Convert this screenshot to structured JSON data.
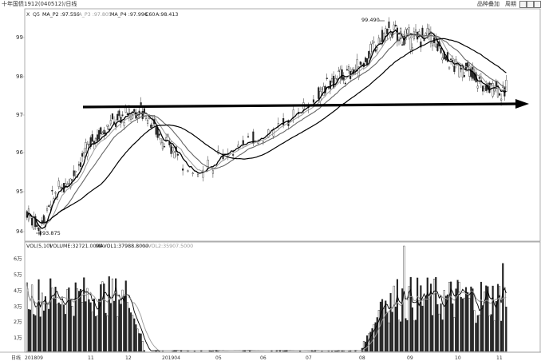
{
  "window": {
    "title": "十年国债1912(040512)/日线",
    "buttons": {
      "overlay": "品种叠加",
      "period": "周期"
    },
    "control_icons": [
      "left-arrow-icon",
      "right-arrow-icon",
      "window-icon",
      "close-icon"
    ]
  },
  "price_panel": {
    "legend": {
      "prefix": "X",
      "period_tag": "Q5",
      "ma2": "MA_P2 :97.555",
      "ma3": "MA_P3 :97.805",
      "ma4": "MA_P4 :97.996",
      "c60": "C60",
      "a": "A:98.413"
    },
    "y_ticks": [
      "94",
      "95",
      "96",
      "97",
      "98",
      "99"
    ],
    "annotations": {
      "high": "99.490",
      "low": "93.875"
    }
  },
  "volume_panel": {
    "legend": {
      "vol": "VOL(5,10)",
      "volume": "VOLUME:32721.0000",
      "mavol1": "MAVOL1:37988.8000",
      "mavol2": "MAVOL2:35907.5000"
    },
    "y_ticks": [
      "1万",
      "2万",
      "3万",
      "4万",
      "5万",
      "6万"
    ]
  },
  "x_axis": {
    "left_label": "日线",
    "ticks": [
      "201809",
      "11",
      "12",
      "201904",
      "05",
      "06",
      "07",
      "08",
      "09",
      "10",
      "11"
    ]
  },
  "colors": {
    "ma_short": "#000000",
    "ma_mid": "#666666",
    "ma_light": "#999999",
    "ma_long": "#000000",
    "candle": "#333333",
    "support_arrow": "#000000"
  },
  "chart_data": [
    {
      "type": "candlestick",
      "title": "",
      "ylim": [
        93.7,
        99.8
      ],
      "x_ticks": [
        "201809",
        "11",
        "12",
        "201904",
        "05",
        "06",
        "07",
        "08",
        "09",
        "10",
        "11"
      ],
      "high": 99.49,
      "low": 93.875,
      "support_level": 97.25,
      "series": [
        {
          "name": "MA_P2",
          "last": 97.555
        },
        {
          "name": "MA_P3",
          "last": 97.805
        },
        {
          "name": "MA_P4",
          "last": 97.996
        },
        {
          "name": "A",
          "last": 98.413
        }
      ]
    },
    {
      "type": "bar",
      "title": "VOL(5,10)",
      "ylim": [
        0,
        68000
      ],
      "y_ticks": [
        10000,
        20000,
        30000,
        40000,
        50000,
        60000
      ],
      "series": [
        {
          "name": "VOLUME",
          "last": 32721.0
        },
        {
          "name": "MAVOL1",
          "last": 37988.8
        },
        {
          "name": "MAVOL2",
          "last": 35907.5
        }
      ]
    }
  ]
}
